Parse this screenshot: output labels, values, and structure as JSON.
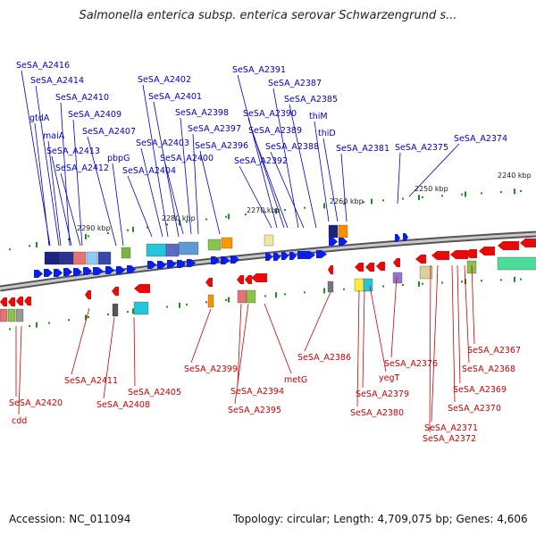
{
  "title": "Salmonella enterica subsp. enterica serovar Schwarzengrund s...",
  "footer": {
    "accession": "Accession: NC_011094",
    "summary": "Topology: circular; Length: 4,709,075 bp; Genes: 4,606"
  },
  "colors": {
    "forward_label": "#0000cc",
    "reverse_label": "#cc0000",
    "forward_gene": "#0a1ee6",
    "reverse_gene": "#e60a0a",
    "backbone": "#888888",
    "tick": "#1e8c1e"
  },
  "scale_labels": [
    "2290 kbp",
    "2280 kbp",
    "2270 kbp",
    "2260 kbp",
    "2250 kbp",
    "2240 kbp"
  ],
  "forward_labels": [
    "SeSA_A2416",
    "SeSA_A2414",
    "SeSA_A2410",
    "SeSA_A2409",
    "gtdA",
    "SeSA_A2407",
    "maiA",
    "pbpG",
    "SeSA_A2413",
    "SeSA_A2412",
    "SeSA_A2402",
    "SeSA_A2401",
    "SeSA_A2398",
    "SeSA_A2397",
    "SeSA_A2403",
    "SeSA_A2396",
    "SeSA_A2400",
    "SeSA_A2404",
    "SeSA_A2391",
    "SeSA_A2387",
    "SeSA_A2385",
    "SeSA_A2390",
    "thiM",
    "SeSA_A2389",
    "thiD",
    "SeSA_A2388",
    "SeSA_A2392",
    "SeSA_A2381",
    "SeSA_A2375",
    "SeSA_A2374"
  ],
  "reverse_labels": [
    "SeSA_A2420",
    "cdd",
    "SeSA_A2411",
    "SeSA_A2405",
    "SeSA_A2408",
    "SeSA_A2399",
    "SeSA_A2394",
    "SeSA_A2395",
    "metG",
    "SeSA_A2386",
    "SeSA_A2376",
    "yegT",
    "SeSA_A2379",
    "SeSA_A2380",
    "SeSA_A2367",
    "SeSA_A2368",
    "SeSA_A2369",
    "SeSA_A2370",
    "SeSA_A2371",
    "SeSA_A2372"
  ]
}
